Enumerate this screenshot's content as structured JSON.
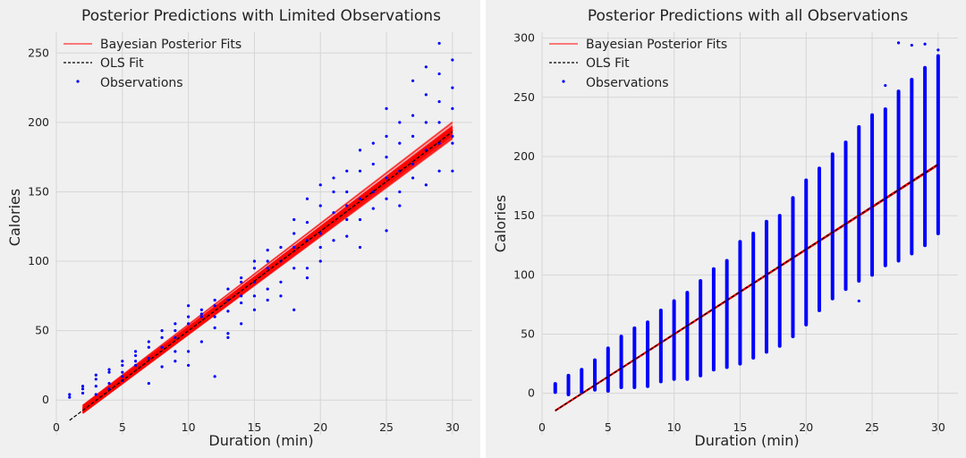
{
  "chart_data": [
    {
      "type": "scatter",
      "title": "Posterior Predictions with Limited Observations",
      "xlabel": "Duration (min)",
      "ylabel": "Calories",
      "xlim": [
        0,
        31.5
      ],
      "ylim": [
        -25,
        265
      ],
      "xticks": [
        "0",
        "5",
        "10",
        "15",
        "20",
        "25",
        "30"
      ],
      "yticks": [
        "0",
        "50",
        "100",
        "150",
        "200",
        "250"
      ],
      "grid": true,
      "legend": {
        "placement": "top-left",
        "entries": [
          "Bayesian Posterior Fits",
          "OLS Fit",
          "Observations"
        ]
      },
      "colors": {
        "posterior": "#ff0000",
        "ols": "#000000",
        "observations": "#0000ff"
      },
      "ols_fit": {
        "intercept": -21.8,
        "slope": 7.17
      },
      "posterior_fits": {
        "intercept_range": [
          -24,
          -18
        ],
        "slope_range": [
          7.05,
          7.3
        ]
      },
      "series": [
        {
          "name": "Observations",
          "points": [
            [
              1,
              2
            ],
            [
              1,
              4
            ],
            [
              2,
              5
            ],
            [
              2,
              8
            ],
            [
              2,
              10
            ],
            [
              3,
              10
            ],
            [
              3,
              15
            ],
            [
              3,
              18
            ],
            [
              3,
              4
            ],
            [
              4,
              8
            ],
            [
              4,
              12
            ],
            [
              4,
              20
            ],
            [
              4,
              22
            ],
            [
              5,
              17
            ],
            [
              5,
              20
            ],
            [
              5,
              25
            ],
            [
              5,
              28
            ],
            [
              5,
              14
            ],
            [
              6,
              28
            ],
            [
              6,
              32
            ],
            [
              6,
              35
            ],
            [
              6,
              25
            ],
            [
              7,
              30
            ],
            [
              7,
              38
            ],
            [
              7,
              42
            ],
            [
              7,
              12
            ],
            [
              8,
              38
            ],
            [
              8,
              45
            ],
            [
              8,
              50
            ],
            [
              8,
              24
            ],
            [
              9,
              45
            ],
            [
              9,
              50
            ],
            [
              9,
              55
            ],
            [
              9,
              35
            ],
            [
              9,
              28
            ],
            [
              10,
              55
            ],
            [
              10,
              60
            ],
            [
              10,
              68
            ],
            [
              10,
              35
            ],
            [
              10,
              25
            ],
            [
              11,
              60
            ],
            [
              11,
              65
            ],
            [
              11,
              62
            ],
            [
              11,
              42
            ],
            [
              12,
              60
            ],
            [
              12,
              68
            ],
            [
              12,
              72
            ],
            [
              12,
              52
            ],
            [
              12,
              17
            ],
            [
              13,
              72
            ],
            [
              13,
              80
            ],
            [
              13,
              64
            ],
            [
              13,
              48
            ],
            [
              13,
              45
            ],
            [
              14,
              75
            ],
            [
              14,
              85
            ],
            [
              14,
              70
            ],
            [
              14,
              55
            ],
            [
              14,
              88
            ],
            [
              15,
              85
            ],
            [
              15,
              95
            ],
            [
              15,
              75
            ],
            [
              15,
              100
            ],
            [
              15,
              65
            ],
            [
              16,
              95
            ],
            [
              16,
              100
            ],
            [
              16,
              80
            ],
            [
              16,
              72
            ],
            [
              16,
              108
            ],
            [
              17,
              100
            ],
            [
              17,
              110
            ],
            [
              17,
              85
            ],
            [
              17,
              75
            ],
            [
              18,
              110
            ],
            [
              18,
              120
            ],
            [
              18,
              95
            ],
            [
              18,
              65
            ],
            [
              18,
              130
            ],
            [
              19,
              115
            ],
            [
              19,
              128
            ],
            [
              19,
              95
            ],
            [
              19,
              88
            ],
            [
              19,
              145
            ],
            [
              20,
              120
            ],
            [
              20,
              140
            ],
            [
              20,
              155
            ],
            [
              20,
              110
            ],
            [
              20,
              100
            ],
            [
              21,
              135
            ],
            [
              21,
              150
            ],
            [
              21,
              115
            ],
            [
              21,
              160
            ],
            [
              22,
              140
            ],
            [
              22,
              150
            ],
            [
              22,
              165
            ],
            [
              22,
              130
            ],
            [
              22,
              118
            ],
            [
              23,
              145
            ],
            [
              23,
              165
            ],
            [
              23,
              130
            ],
            [
              23,
              110
            ],
            [
              23,
              180
            ],
            [
              24,
              150
            ],
            [
              24,
              170
            ],
            [
              24,
              138
            ],
            [
              24,
              185
            ],
            [
              25,
              160
            ],
            [
              25,
              175
            ],
            [
              25,
              190
            ],
            [
              25,
              145
            ],
            [
              25,
              122
            ],
            [
              25,
              210
            ],
            [
              26,
              165
            ],
            [
              26,
              185
            ],
            [
              26,
              200
            ],
            [
              26,
              150
            ],
            [
              26,
              140
            ],
            [
              27,
              170
            ],
            [
              27,
              190
            ],
            [
              27,
              205
            ],
            [
              27,
              160
            ],
            [
              27,
              230
            ],
            [
              28,
              180
            ],
            [
              28,
              200
            ],
            [
              28,
              155
            ],
            [
              28,
              220
            ],
            [
              28,
              240
            ],
            [
              29,
              185
            ],
            [
              29,
              200
            ],
            [
              29,
              215
            ],
            [
              29,
              165
            ],
            [
              29,
              257
            ],
            [
              29,
              235
            ],
            [
              30,
              190
            ],
            [
              30,
              210
            ],
            [
              30,
              225
            ],
            [
              30,
              165
            ],
            [
              30,
              245
            ],
            [
              30,
              185
            ]
          ]
        }
      ]
    },
    {
      "type": "scatter",
      "title": "Posterior Predictions with all Observations",
      "xlabel": "Duration (min)",
      "ylabel": "Calories",
      "xlim": [
        0,
        31.5
      ],
      "ylim": [
        -35,
        305
      ],
      "xticks": [
        "0",
        "5",
        "10",
        "15",
        "20",
        "25",
        "30"
      ],
      "yticks": [
        "0",
        "50",
        "100",
        "150",
        "200",
        "250",
        "300"
      ],
      "grid": true,
      "legend": {
        "placement": "top-left",
        "entries": [
          "Bayesian Posterior Fits",
          "OLS Fit",
          "Observations"
        ]
      },
      "colors": {
        "posterior": "#ff0000",
        "ols": "#000000",
        "observations": "#0000ff"
      },
      "ols_fit": {
        "intercept": -21.8,
        "slope": 7.17
      },
      "posterior_fits": {
        "intercept_range": [
          -22.3,
          -21.3
        ],
        "slope_range": [
          7.15,
          7.19
        ]
      },
      "series": [
        {
          "name": "Observations",
          "columns": [
            [
              1,
              1,
              8
            ],
            [
              2,
              -1,
              15
            ],
            [
              3,
              1,
              20
            ],
            [
              4,
              3,
              28
            ],
            [
              5,
              2,
              38
            ],
            [
              6,
              5,
              48
            ],
            [
              7,
              5,
              55
            ],
            [
              8,
              6,
              60
            ],
            [
              9,
              10,
              70
            ],
            [
              10,
              12,
              78
            ],
            [
              11,
              12,
              85
            ],
            [
              12,
              15,
              95
            ],
            [
              13,
              20,
              105
            ],
            [
              14,
              22,
              112
            ],
            [
              15,
              25,
              128
            ],
            [
              16,
              30,
              135
            ],
            [
              17,
              35,
              145
            ],
            [
              18,
              40,
              150
            ],
            [
              19,
              48,
              165
            ],
            [
              20,
              58,
              180
            ],
            [
              21,
              70,
              190
            ],
            [
              22,
              80,
              202
            ],
            [
              23,
              88,
              212
            ],
            [
              24,
              95,
              225
            ],
            [
              25,
              100,
              235
            ],
            [
              26,
              108,
              240
            ],
            [
              27,
              112,
              255
            ],
            [
              28,
              118,
              265
            ],
            [
              29,
              125,
              275
            ],
            [
              30,
              135,
              285
            ]
          ],
          "outliers": [
            [
              25,
              230
            ],
            [
              27,
              296
            ],
            [
              28,
              294
            ],
            [
              29,
              295
            ],
            [
              30,
              290
            ],
            [
              26,
              260
            ],
            [
              24,
              78
            ],
            [
              30,
              142
            ],
            [
              29,
              150
            ],
            [
              27,
              155
            ]
          ]
        }
      ]
    }
  ]
}
